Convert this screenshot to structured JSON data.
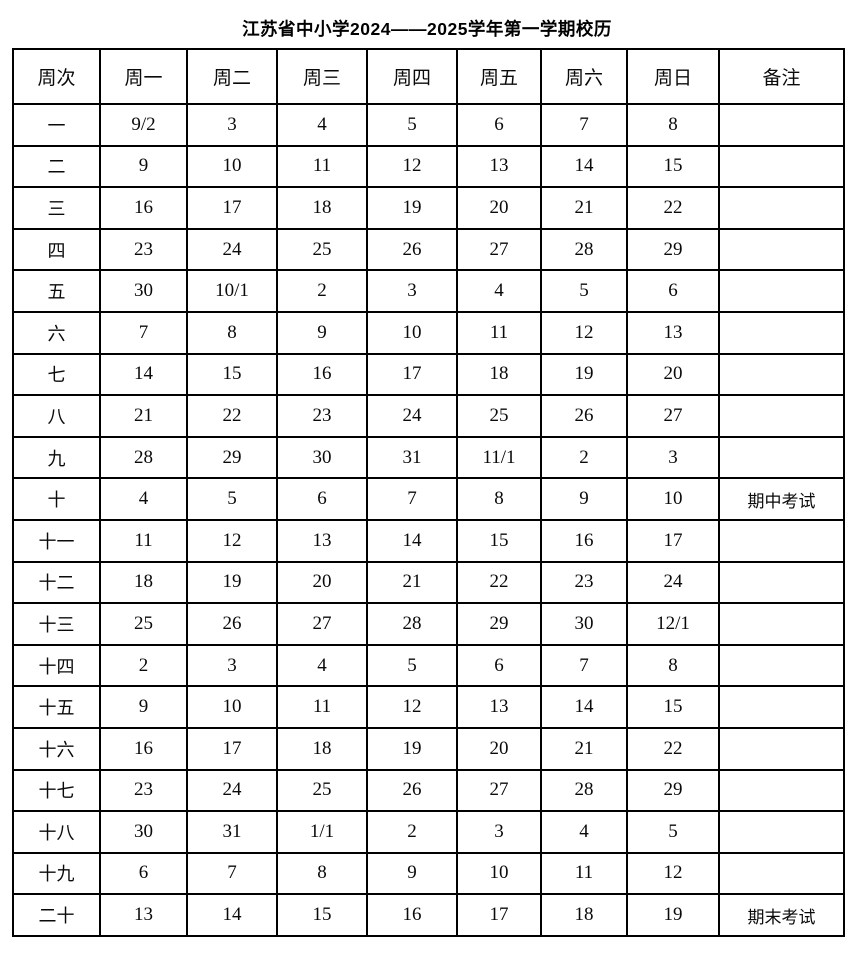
{
  "title": "江苏省中小学2024——2025学年第一学期校历",
  "table": {
    "headers": [
      "周次",
      "周一",
      "周二",
      "周三",
      "周四",
      "周五",
      "周六",
      "周日",
      "备注"
    ],
    "rows": [
      {
        "week": "一",
        "days": [
          "9/2",
          "3",
          "4",
          "5",
          "6",
          "7",
          "8"
        ],
        "note": ""
      },
      {
        "week": "二",
        "days": [
          "9",
          "10",
          "11",
          "12",
          "13",
          "14",
          "15"
        ],
        "note": ""
      },
      {
        "week": "三",
        "days": [
          "16",
          "17",
          "18",
          "19",
          "20",
          "21",
          "22"
        ],
        "note": ""
      },
      {
        "week": "四",
        "days": [
          "23",
          "24",
          "25",
          "26",
          "27",
          "28",
          "29"
        ],
        "note": ""
      },
      {
        "week": "五",
        "days": [
          "30",
          "10/1",
          "2",
          "3",
          "4",
          "5",
          "6"
        ],
        "note": ""
      },
      {
        "week": "六",
        "days": [
          "7",
          "8",
          "9",
          "10",
          "11",
          "12",
          "13"
        ],
        "note": ""
      },
      {
        "week": "七",
        "days": [
          "14",
          "15",
          "16",
          "17",
          "18",
          "19",
          "20"
        ],
        "note": ""
      },
      {
        "week": "八",
        "days": [
          "21",
          "22",
          "23",
          "24",
          "25",
          "26",
          "27"
        ],
        "note": ""
      },
      {
        "week": "九",
        "days": [
          "28",
          "29",
          "30",
          "31",
          "11/1",
          "2",
          "3"
        ],
        "note": ""
      },
      {
        "week": "十",
        "days": [
          "4",
          "5",
          "6",
          "7",
          "8",
          "9",
          "10"
        ],
        "note": "期中考试"
      },
      {
        "week": "十一",
        "days": [
          "11",
          "12",
          "13",
          "14",
          "15",
          "16",
          "17"
        ],
        "note": ""
      },
      {
        "week": "十二",
        "days": [
          "18",
          "19",
          "20",
          "21",
          "22",
          "23",
          "24"
        ],
        "note": ""
      },
      {
        "week": "十三",
        "days": [
          "25",
          "26",
          "27",
          "28",
          "29",
          "30",
          "12/1"
        ],
        "note": ""
      },
      {
        "week": "十四",
        "days": [
          "2",
          "3",
          "4",
          "5",
          "6",
          "7",
          "8"
        ],
        "note": ""
      },
      {
        "week": "十五",
        "days": [
          "9",
          "10",
          "11",
          "12",
          "13",
          "14",
          "15"
        ],
        "note": ""
      },
      {
        "week": "十六",
        "days": [
          "16",
          "17",
          "18",
          "19",
          "20",
          "21",
          "22"
        ],
        "note": ""
      },
      {
        "week": "十七",
        "days": [
          "23",
          "24",
          "25",
          "26",
          "27",
          "28",
          "29"
        ],
        "note": ""
      },
      {
        "week": "十八",
        "days": [
          "30",
          "31",
          "1/1",
          "2",
          "3",
          "4",
          "5"
        ],
        "note": ""
      },
      {
        "week": "十九",
        "days": [
          "6",
          "7",
          "8",
          "9",
          "10",
          "11",
          "12"
        ],
        "note": ""
      },
      {
        "week": "二十",
        "days": [
          "13",
          "14",
          "15",
          "16",
          "17",
          "18",
          "19"
        ],
        "note": "期末考试"
      }
    ]
  }
}
